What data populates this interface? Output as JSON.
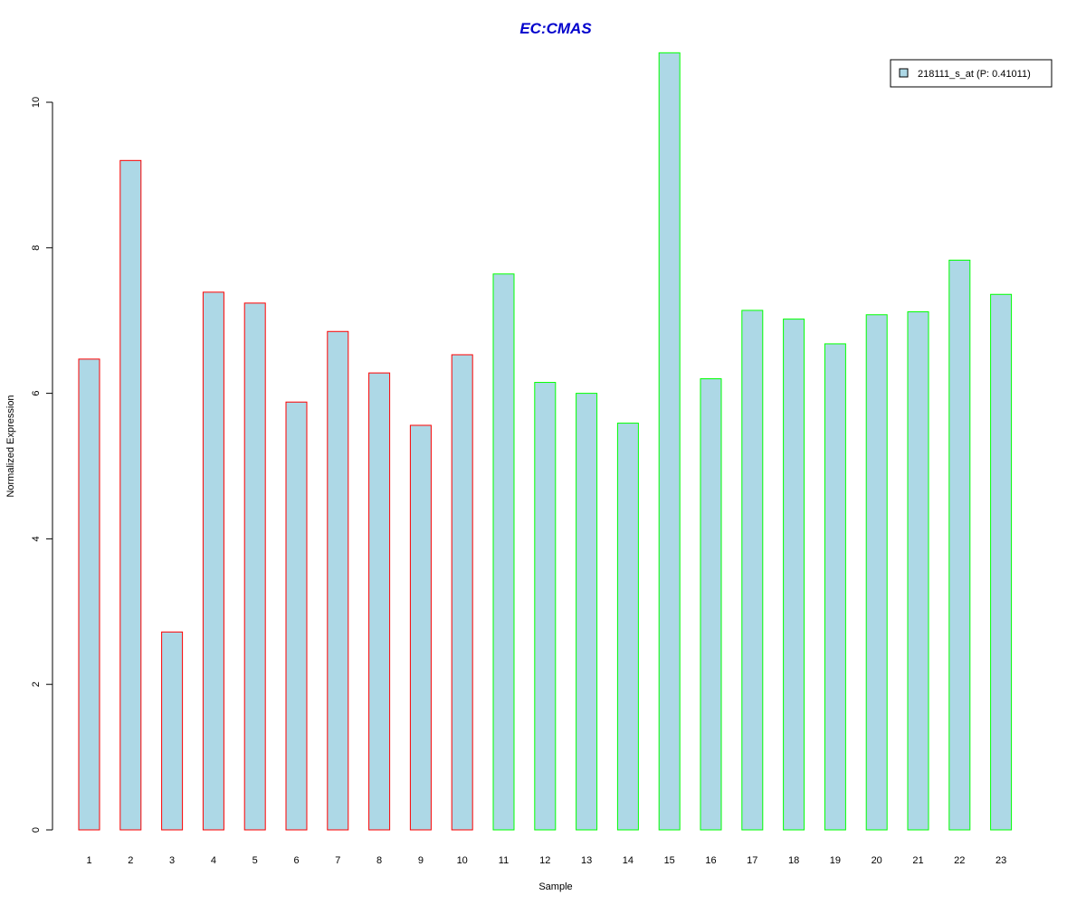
{
  "chart_data": {
    "type": "bar",
    "title": "EC:CMAS",
    "xlabel": "Sample",
    "ylabel": "Normalized Expression",
    "categories": [
      "1",
      "2",
      "3",
      "4",
      "5",
      "6",
      "7",
      "8",
      "9",
      "10",
      "11",
      "12",
      "13",
      "14",
      "15",
      "16",
      "17",
      "18",
      "19",
      "20",
      "21",
      "22",
      "23"
    ],
    "series": [
      {
        "name": "218111_s_at (P: 0.41011)",
        "values": [
          6.47,
          9.2,
          2.72,
          7.39,
          7.24,
          5.88,
          6.85,
          6.28,
          5.56,
          6.53,
          7.64,
          6.15,
          6.0,
          5.59,
          10.68,
          6.2,
          7.14,
          7.02,
          6.68,
          7.08,
          7.12,
          7.83,
          7.36
        ]
      }
    ],
    "bar_border_colors": [
      "#ff0000",
      "#ff0000",
      "#ff0000",
      "#ff0000",
      "#ff0000",
      "#ff0000",
      "#ff0000",
      "#ff0000",
      "#ff0000",
      "#ff0000",
      "#00ff00",
      "#00ff00",
      "#00ff00",
      "#00ff00",
      "#00ff00",
      "#00ff00",
      "#00ff00",
      "#00ff00",
      "#00ff00",
      "#00ff00",
      "#00ff00",
      "#00ff00",
      "#00ff00"
    ],
    "bar_fill_color": "#add8e6",
    "title_color": "#0000cc",
    "ylim": [
      0,
      10
    ],
    "yticks": [
      0,
      2,
      4,
      6,
      8,
      10
    ],
    "grid": false,
    "legend_position": "top-right"
  }
}
